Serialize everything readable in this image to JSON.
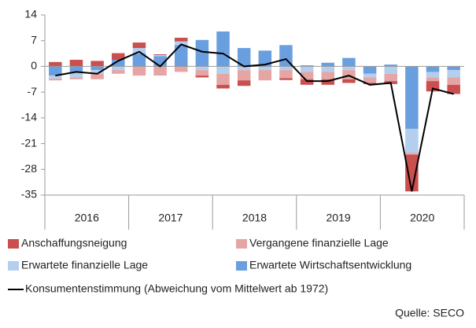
{
  "chart_data": {
    "type": "bar",
    "stacked": true,
    "categories": [
      null,
      null,
      null,
      null,
      null,
      null,
      null,
      null,
      null,
      null,
      null,
      null,
      null,
      null,
      null,
      null,
      null,
      null,
      null,
      null
    ],
    "year_labels": [
      "2016",
      "2017",
      "2018",
      "2019",
      "2020"
    ],
    "series": [
      {
        "name": "Anschaffungsneigung",
        "color": "#c9504f",
        "values": [
          1.2,
          1.8,
          1.5,
          1.8,
          1.5,
          0.2,
          1.0,
          -0.5,
          -1.0,
          -1.5,
          0,
          -0.5,
          -1.5,
          -1.5,
          -1.0,
          -0.3,
          -0.8,
          -10.0,
          -2.8,
          -2.5
        ]
      },
      {
        "name": "Vergangene finanzielle Lage",
        "color": "#e6a5a5",
        "values": [
          -0.5,
          -0.5,
          -1.5,
          -1.0,
          -2.5,
          -2.5,
          -1.5,
          -1.5,
          -3.0,
          -2.8,
          -2.8,
          -2.2,
          -2.0,
          -2.0,
          -2.5,
          -1.5,
          -2.0,
          -0.5,
          -1.0,
          -2.0
        ]
      },
      {
        "name": "Erwartete finanzielle Lage",
        "color": "#b4cfee",
        "values": [
          -0.8,
          -1.5,
          -1.0,
          -1.0,
          1.5,
          0.3,
          1.0,
          -1.0,
          -2.0,
          -1.0,
          -1.0,
          -1.0,
          -1.5,
          -1.5,
          -1.0,
          -1.0,
          -2.0,
          -6.5,
          -1.5,
          -2.0
        ]
      },
      {
        "name": "Erwartete Wirtschaftsentwicklung",
        "color": "#6a9fdf",
        "values": [
          -2.5,
          -1.5,
          -1.0,
          1.8,
          3.5,
          2.8,
          5.8,
          7.2,
          9.5,
          5.0,
          4.3,
          5.8,
          0.3,
          1.0,
          2.3,
          -2.0,
          0.5,
          -17.0,
          -1.5,
          -1.0
        ]
      },
      {
        "name": "Konsumentenstimmung (Abweichung vom Mittelwert ab 1972)",
        "type": "line",
        "color": "#000000",
        "values": [
          -2.5,
          -1.5,
          -2.0,
          1.5,
          4.0,
          0.0,
          6.0,
          4.0,
          3.5,
          0.0,
          0.5,
          2.0,
          -4.0,
          -4.0,
          -2.5,
          -5.0,
          -4.5,
          -34.0,
          -6.0,
          -7.5
        ]
      }
    ],
    "ylim": [
      -35,
      14
    ],
    "yticks": [
      14,
      7,
      0,
      -7,
      -14,
      -21,
      -28,
      -35
    ],
    "source": "Quelle: SECO"
  }
}
